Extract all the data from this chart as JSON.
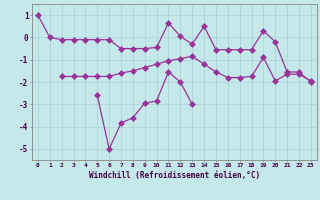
{
  "x": [
    0,
    1,
    2,
    3,
    4,
    5,
    6,
    7,
    8,
    9,
    10,
    11,
    12,
    13,
    14,
    15,
    16,
    17,
    18,
    19,
    20,
    21,
    22,
    23
  ],
  "line1": [
    1,
    0,
    -0.1,
    -0.1,
    -0.1,
    -0.1,
    -0.1,
    -0.5,
    -0.5,
    -0.5,
    -0.45,
    0.65,
    0.05,
    -0.3,
    0.5,
    -0.55,
    -0.55,
    -0.55,
    -0.55,
    0.3,
    -0.2,
    -1.55,
    -1.55,
    -2.0
  ],
  "line2": [
    null,
    null,
    -1.75,
    -1.75,
    -1.75,
    -1.75,
    -1.75,
    -1.6,
    -1.5,
    -1.35,
    -1.2,
    -1.05,
    -0.95,
    -0.85,
    -1.2,
    -1.55,
    -1.8,
    -1.8,
    -1.75,
    -0.9,
    -1.95,
    -1.65,
    -1.65,
    -1.95
  ],
  "line3": [
    null,
    null,
    null,
    null,
    null,
    -2.6,
    -5.0,
    -3.85,
    -3.6,
    -2.95,
    -2.85,
    -1.55,
    -2.0,
    -3.0,
    null,
    null,
    null,
    null,
    null,
    null,
    null,
    null,
    null,
    null
  ],
  "bg_color": "#c5e8eb",
  "grid_color": "#afd5d8",
  "line_color": "#993399",
  "markersize": 3,
  "linewidth": 0.9,
  "xlabel": "Windchill (Refroidissement éolien,°C)",
  "ylabel_ticks": [
    1,
    0,
    -1,
    -2,
    -3,
    -4,
    -5
  ],
  "xtick_labels": [
    "0",
    "1",
    "2",
    "3",
    "4",
    "5",
    "6",
    "7",
    "8",
    "9",
    "10",
    "11",
    "12",
    "13",
    "14",
    "15",
    "16",
    "17",
    "18",
    "19",
    "20",
    "21",
    "22",
    "23"
  ],
  "ylim": [
    -5.5,
    1.5
  ],
  "xlim": [
    -0.5,
    23.5
  ]
}
